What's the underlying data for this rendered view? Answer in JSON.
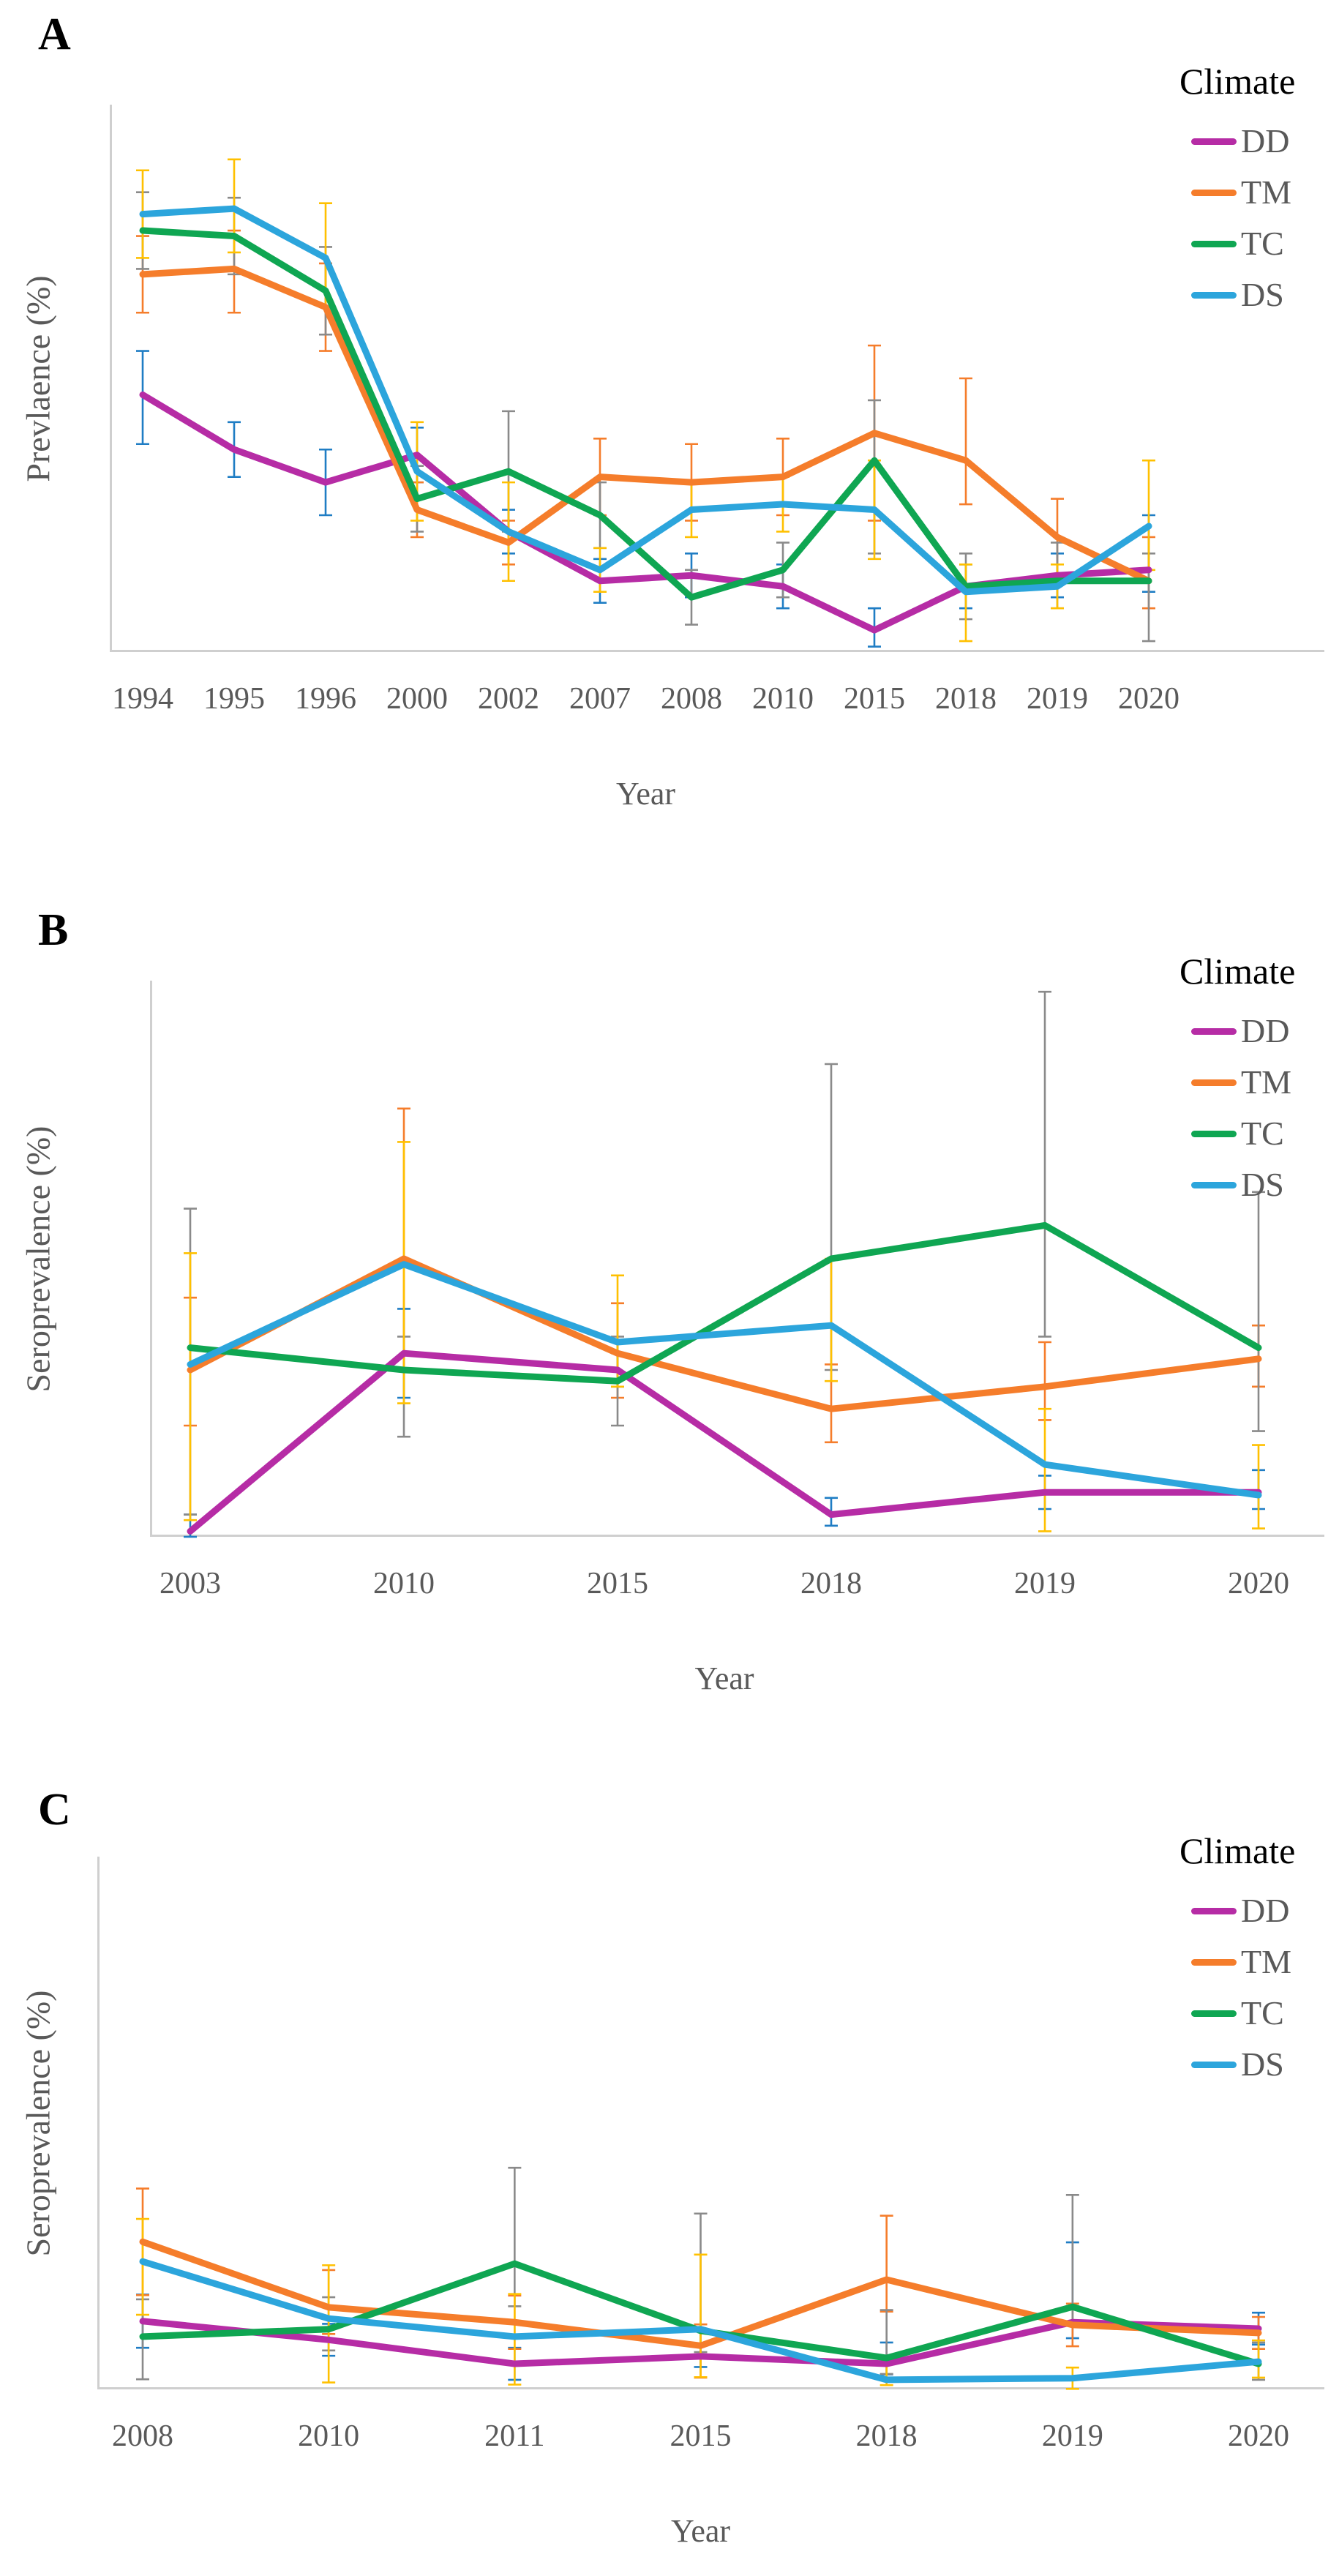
{
  "figure": {
    "background": "#ffffff",
    "text_color": "#595959",
    "axis_color": "#cfcfcf",
    "accent_colors": {
      "DD": "#B62CA5",
      "TM": "#F57D2B",
      "TC": "#0FA652",
      "DS": "#2CA5DC"
    },
    "error_bar_colors": {
      "DD": "#1F7DC4",
      "TM": "#F57D2B",
      "TC": "#8A8A8A",
      "DS": "#FFC000"
    }
  },
  "chart_data": [
    {
      "type": "line",
      "panel_label": "A",
      "xlabel": "Year",
      "ylabel": "Prevlaence (%)",
      "legend_title": "Climate",
      "legend_position": "top-right",
      "grid": false,
      "ylim": [
        0,
        100
      ],
      "y_axis_note": "axis has no tick labels; values are relative to plot height",
      "categories": [
        "1994",
        "1995",
        "1996",
        "2000",
        "2002",
        "2007",
        "2008",
        "2010",
        "2015",
        "2018",
        "2019",
        "2020"
      ],
      "series": [
        {
          "name": "DD",
          "color": "#B62CA5",
          "error_color": "#1F7DC4",
          "values": [
            47,
            37,
            31,
            36,
            22,
            13,
            14,
            12,
            4,
            12,
            14,
            15
          ],
          "err_up": [
            8,
            5,
            6,
            5,
            4,
            4,
            4,
            4,
            4,
            4,
            4,
            10
          ],
          "err_down": [
            9,
            5,
            6,
            5,
            4,
            4,
            4,
            4,
            3,
            4,
            4,
            4
          ]
        },
        {
          "name": "TM",
          "color": "#F57D2B",
          "error_color": "#F57D2B",
          "values": [
            69,
            70,
            63,
            26,
            20,
            32,
            31,
            32,
            40,
            35,
            21,
            13
          ],
          "err_up": [
            7,
            7,
            8,
            5,
            4,
            7,
            7,
            7,
            16,
            15,
            7,
            8
          ],
          "err_down": [
            7,
            8,
            8,
            5,
            4,
            7,
            7,
            7,
            16,
            8,
            7,
            5
          ]
        },
        {
          "name": "TC",
          "color": "#0FA652",
          "error_color": "#8A8A8A",
          "values": [
            77,
            76,
            66,
            28,
            33,
            25,
            10,
            15,
            35,
            12,
            13,
            13
          ],
          "err_up": [
            7,
            7,
            8,
            6,
            11,
            6,
            5,
            5,
            11,
            6,
            7,
            5
          ],
          "err_down": [
            7,
            7,
            8,
            6,
            11,
            6,
            5,
            5,
            17,
            6,
            5,
            11
          ]
        },
        {
          "name": "DS",
          "color": "#2CA5DC",
          "error_color": "#FFC000",
          "values": [
            80,
            81,
            72,
            33,
            22,
            15,
            26,
            27,
            26,
            11,
            12,
            23
          ],
          "err_up": [
            8,
            9,
            10,
            9,
            9,
            4,
            5,
            5,
            9,
            5,
            4,
            12
          ],
          "err_down": [
            8,
            8,
            9,
            9,
            9,
            4,
            5,
            5,
            9,
            9,
            4,
            8
          ]
        }
      ]
    },
    {
      "type": "line",
      "panel_label": "B",
      "xlabel": "Year",
      "ylabel": "Seroprevalence (%)",
      "legend_title": "Climate",
      "legend_position": "top-right",
      "grid": false,
      "ylim": [
        0,
        100
      ],
      "y_axis_note": "axis has no tick labels; values are relative to plot height",
      "categories": [
        "2003",
        "2010",
        "2015",
        "2018",
        "2019",
        "2020"
      ],
      "series": [
        {
          "name": "DD",
          "color": "#B62CA5",
          "error_color": "#1F7DC4",
          "values": [
            1,
            33,
            30,
            4,
            8,
            8
          ],
          "err_up": [
            3,
            8,
            3,
            3,
            3,
            4
          ],
          "err_down": [
            1,
            8,
            3,
            2,
            3,
            3
          ]
        },
        {
          "name": "TM",
          "color": "#F57D2B",
          "error_color": "#F57D2B",
          "values": [
            30,
            50,
            33,
            23,
            27,
            32
          ],
          "err_up": [
            13,
            27,
            9,
            8,
            8,
            6
          ],
          "err_down": [
            10,
            20,
            8,
            6,
            6,
            5
          ]
        },
        {
          "name": "TC",
          "color": "#0FA652",
          "error_color": "#8A8A8A",
          "values": [
            34,
            30,
            28,
            50,
            56,
            34
          ],
          "err_up": [
            25,
            6,
            8,
            35,
            42,
            28
          ],
          "err_down": [
            30,
            12,
            8,
            20,
            20,
            15
          ]
        },
        {
          "name": "DS",
          "color": "#2CA5DC",
          "error_color": "#FFC000",
          "values": [
            31,
            49,
            35,
            38,
            13,
            7.5
          ],
          "err_up": [
            20,
            22,
            12,
            12,
            10,
            9
          ],
          "err_down": [
            28,
            25,
            8,
            10,
            12,
            6
          ]
        }
      ]
    },
    {
      "type": "line",
      "panel_label": "C",
      "xlabel": "Year",
      "ylabel": "Seroprevalence (%)",
      "legend_title": "Climate",
      "legend_position": "top-right",
      "grid": false,
      "ylim": [
        0,
        100
      ],
      "y_axis_note": "axis has no tick labels; values are relative to plot height",
      "categories": [
        "2008",
        "2010",
        "2011",
        "2015",
        "2018",
        "2019",
        "2020"
      ],
      "series": [
        {
          "name": "DD",
          "color": "#B62CA5",
          "error_color": "#1F7DC4",
          "values": [
            12.8,
            9.3,
            4.8,
            6.2,
            4.8,
            12.6,
            11.4
          ],
          "err_up": [
            5,
            3,
            3,
            2,
            4,
            15,
            3
          ],
          "err_down": [
            5,
            3,
            3,
            2,
            2,
            3,
            3
          ]
        },
        {
          "name": "TM",
          "color": "#F57D2B",
          "error_color": "#F57D2B",
          "values": [
            27.7,
            15.4,
            12.6,
            8.2,
            20.6,
            12.1,
            10.6
          ],
          "err_up": [
            10,
            7,
            5,
            4,
            12,
            4,
            3
          ],
          "err_down": [
            10,
            5,
            5,
            6,
            6,
            4,
            3
          ]
        },
        {
          "name": "TC",
          "color": "#0FA652",
          "error_color": "#8A8A8A",
          "values": [
            9.9,
            11.3,
            23.6,
            11,
            5.9,
            15.5,
            4.8
          ],
          "err_up": [
            7,
            6,
            18,
            22,
            9,
            21,
            4
          ],
          "err_down": [
            8,
            4,
            8,
            4,
            3,
            3,
            3
          ]
        },
        {
          "name": "DS",
          "color": "#2CA5DC",
          "error_color": "#FFC000",
          "values": [
            24,
            13.3,
            9.9,
            11.3,
            1.8,
            2.1,
            5.2
          ],
          "err_up": [
            8,
            10,
            8,
            14,
            4,
            2,
            4
          ],
          "err_down": [
            10,
            12,
            9,
            9,
            1,
            2,
            3
          ]
        }
      ]
    }
  ]
}
